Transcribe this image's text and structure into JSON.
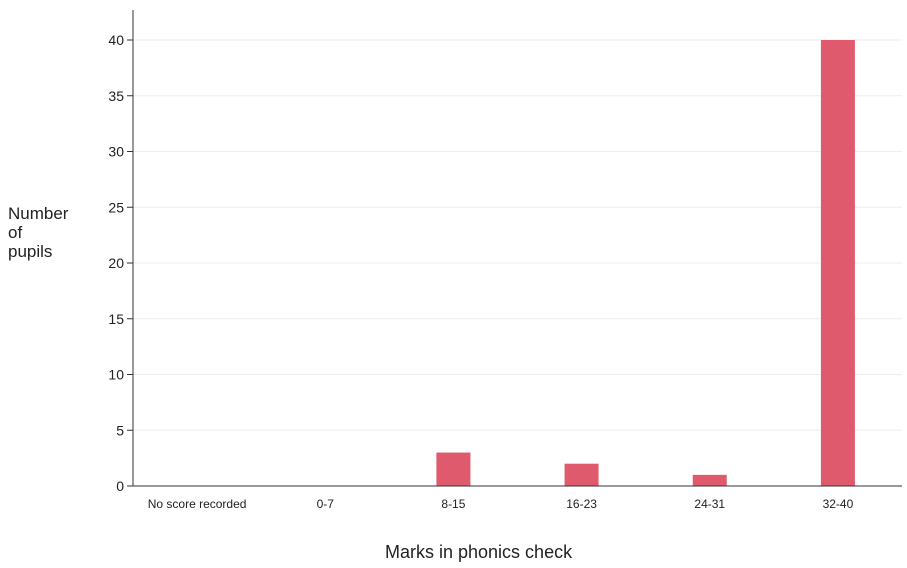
{
  "chart_data": {
    "type": "bar",
    "categories": [
      "No score recorded",
      "0-7",
      "8-15",
      "16-23",
      "24-31",
      "32-40"
    ],
    "values": [
      0,
      0,
      3,
      2,
      1,
      40
    ],
    "ylabel_lines": [
      "Number",
      "of",
      "pupils"
    ],
    "xlabel": "Marks in phonics check",
    "ylim": [
      0,
      40
    ],
    "yticks": [
      0,
      5,
      10,
      15,
      20,
      25,
      30,
      35,
      40
    ],
    "bar_color": "#e05a6e",
    "grid": true
  }
}
